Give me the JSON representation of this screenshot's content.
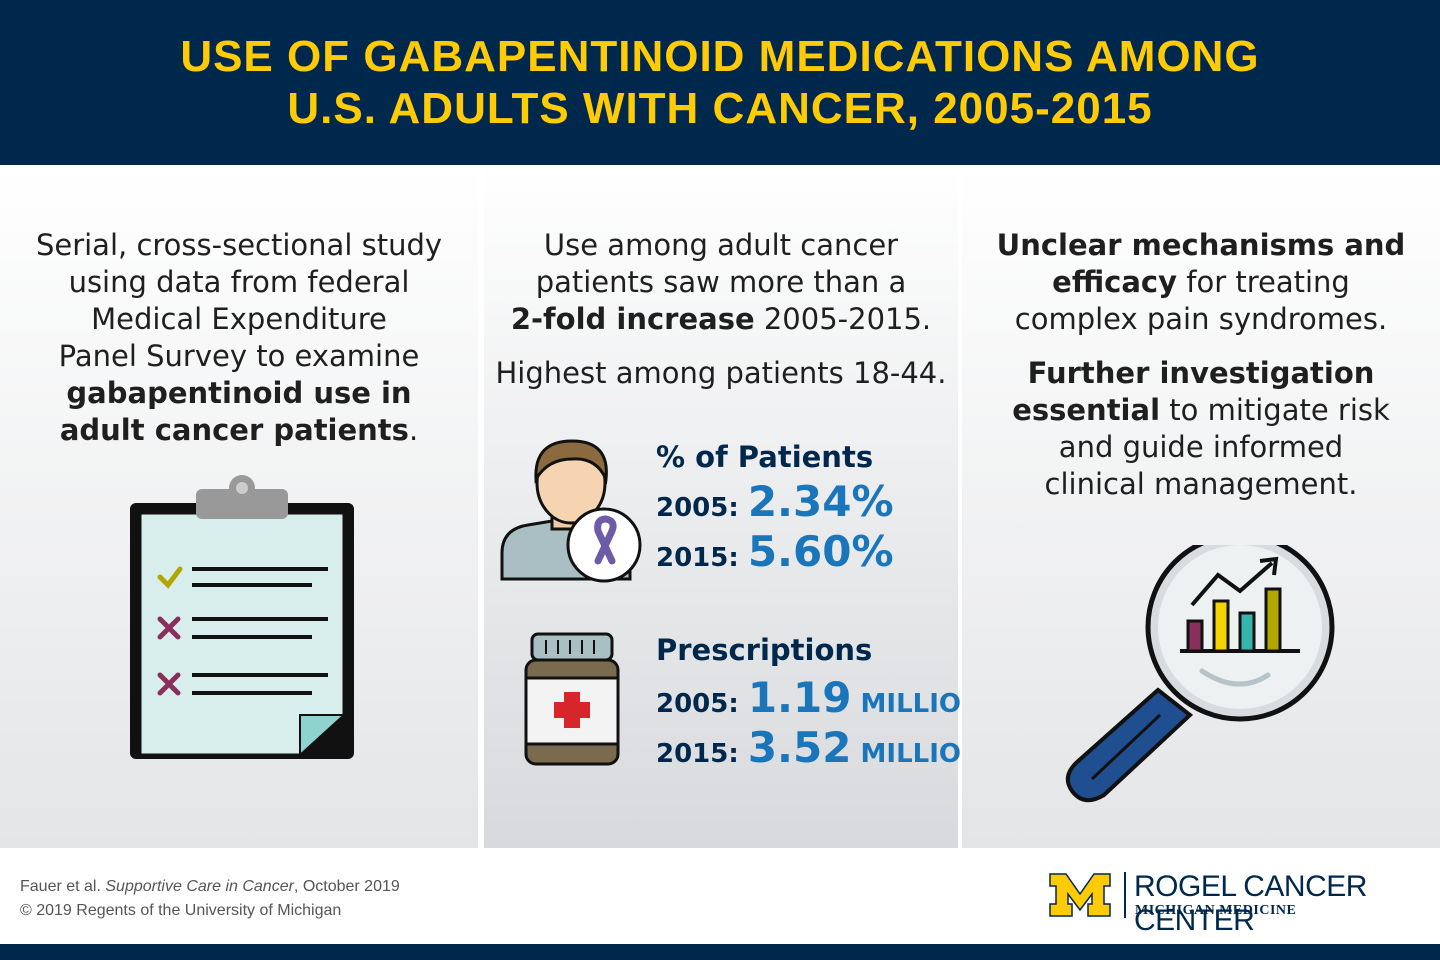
{
  "header": {
    "title_line1": "USE OF GABAPENTINOID MEDICATIONS AMONG",
    "title_line2": "U.S. ADULTS WITH CANCER, 2005-2015"
  },
  "left": {
    "lines": [
      "Serial, cross-sectional study",
      "using data from federal",
      "Medical Expenditure",
      "Panel Survey to examine"
    ],
    "bold_line1": "gabapentinoid use in",
    "bold_line2": "adult cancer patients",
    "bold_line2_suffix": "."
  },
  "middle": {
    "line1": "Use among adult cancer",
    "line2": "patients saw more than a",
    "line3_bold": "2-fold increase",
    "line3_rest": " 2005-2015.",
    "line4": "Highest among patients 18-44.",
    "patients": {
      "title": "% of Patients",
      "row1_year": "2005:",
      "row1_value": "2.34%",
      "row2_year": "2015:",
      "row2_value": "5.60%"
    },
    "prescriptions": {
      "title": "Prescriptions",
      "row1_year": "2005:",
      "row1_value": "1.19",
      "row1_unit": "MILLION",
      "row2_year": "2015:",
      "row2_value": "3.52",
      "row2_unit": "MILLION"
    }
  },
  "right": {
    "p1_bold1": "Unclear mechanisms and",
    "p1_bold2": "efficacy",
    "p1_rest2": " for treating",
    "p1_line3": "complex pain syndromes.",
    "p2_bold1": "Further investigation",
    "p2_bold2": "essential",
    "p2_rest2": " to mitigate risk",
    "p2_line3": "and guide informed",
    "p2_line4": "clinical management."
  },
  "footer": {
    "cite_author": "Fauer et al. ",
    "cite_journal": "Supportive Care in Cancer",
    "cite_date": ", October 2019",
    "copyright": "© 2019 Regents of the University of Michigan",
    "logo_title": "ROGEL CANCER CENTER",
    "logo_sub": "MICHIGAN MEDICINE"
  },
  "colors": {
    "navy": "#00274c",
    "maize": "#ffcb05",
    "blue_accent": "#1a75bb"
  }
}
